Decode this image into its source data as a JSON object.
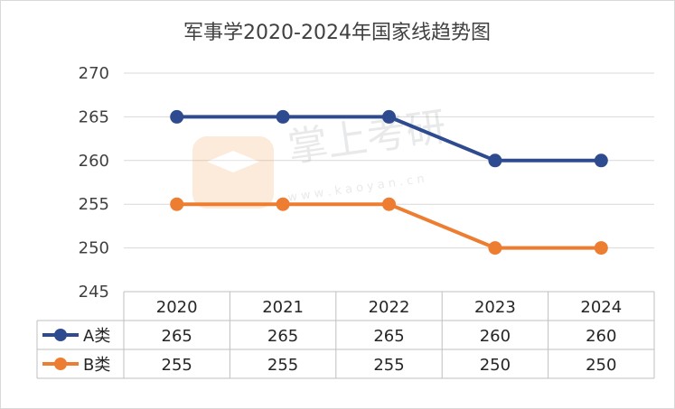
{
  "chart_data": {
    "type": "line",
    "title": "军事学2020-2024年国家线趋势图",
    "categories": [
      "2020",
      "2021",
      "2022",
      "2023",
      "2024"
    ],
    "series": [
      {
        "name": "A类",
        "values": [
          265,
          265,
          265,
          260,
          260
        ],
        "color": "#2e4b8f"
      },
      {
        "name": "B类",
        "values": [
          255,
          255,
          255,
          250,
          250
        ],
        "color": "#ed7d31"
      }
    ],
    "ylim": [
      245,
      270
    ],
    "yticks": [
      "245",
      "250",
      "255",
      "260",
      "265",
      "270"
    ],
    "grid": true,
    "legend_placement": "data-table"
  },
  "watermark": {
    "brand": "掌上考研",
    "url": "w w w . k a o y a n . c n",
    "color": "#f4a460"
  }
}
